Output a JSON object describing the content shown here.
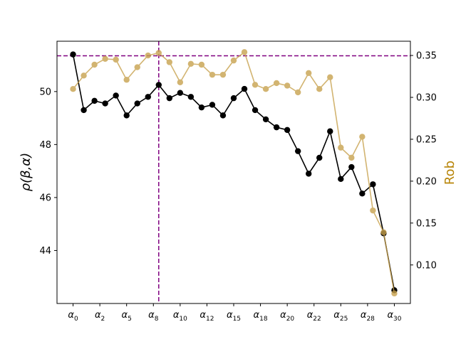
{
  "chart_data": {
    "type": "line",
    "x_tick_labels": [
      {
        "index": 0,
        "base": "α",
        "sub": "0"
      },
      {
        "index": 2,
        "base": "α",
        "sub": "2"
      },
      {
        "index": 4,
        "base": "α",
        "sub": "5"
      },
      {
        "index": 6,
        "base": "α",
        "sub": "8"
      },
      {
        "index": 8,
        "base": "α",
        "sub": "10"
      },
      {
        "index": 10,
        "base": "α",
        "sub": "12"
      },
      {
        "index": 12,
        "base": "α",
        "sub": "15"
      },
      {
        "index": 14,
        "base": "α",
        "sub": "18"
      },
      {
        "index": 16,
        "base": "α",
        "sub": "20"
      },
      {
        "index": 18,
        "base": "α",
        "sub": "22"
      },
      {
        "index": 20,
        "base": "α",
        "sub": "25"
      },
      {
        "index": 22,
        "base": "α",
        "sub": "28"
      },
      {
        "index": 24,
        "base": "α",
        "sub": "30"
      }
    ],
    "x_range": [
      -1.2,
      25.2
    ],
    "left_axis": {
      "label": "ρ(β,α)",
      "range": [
        42.0,
        51.9
      ],
      "ticks": [
        44,
        46,
        48,
        50
      ]
    },
    "right_axis": {
      "label": "Rob",
      "range": [
        0.054,
        0.367
      ],
      "ticks": [
        0.1,
        0.15,
        0.2,
        0.25,
        0.3,
        0.35
      ]
    },
    "series": [
      {
        "axis": "left",
        "color": "#000000",
        "x": [
          0,
          0.8,
          1.6,
          2.4,
          3.2,
          4.0,
          4.8,
          5.6,
          6.4,
          7.2,
          8.0,
          8.8,
          9.6,
          10.4,
          11.2,
          12.0,
          12.8,
          13.6,
          14.4,
          15.2,
          16.0,
          16.8,
          17.6,
          18.4,
          19.2,
          20.0,
          20.8,
          21.6,
          22.4,
          23.2,
          24.0
        ],
        "values": [
          51.4,
          49.3,
          49.65,
          49.55,
          49.85,
          49.1,
          49.55,
          49.8,
          50.25,
          49.75,
          49.95,
          49.8,
          49.4,
          49.5,
          49.1,
          49.75,
          50.1,
          49.3,
          48.95,
          48.65,
          48.55,
          47.75,
          46.9,
          47.5,
          48.5,
          46.7,
          47.15,
          46.15,
          46.5,
          44.65,
          42.5
        ]
      },
      {
        "axis": "right",
        "color": "#c8a24e",
        "x": [
          0,
          0.8,
          1.6,
          2.4,
          3.2,
          4.0,
          4.8,
          5.6,
          6.4,
          7.2,
          8.0,
          8.8,
          9.6,
          10.4,
          11.2,
          12.0,
          12.8,
          13.6,
          14.4,
          15.2,
          16.0,
          16.8,
          17.6,
          18.4,
          19.2,
          20.0,
          20.8,
          21.6,
          22.4,
          23.2,
          24.0
        ],
        "values": [
          0.31,
          0.326,
          0.339,
          0.346,
          0.345,
          0.321,
          0.336,
          0.35,
          0.353,
          0.342,
          0.318,
          0.34,
          0.339,
          0.327,
          0.327,
          0.344,
          0.354,
          0.315,
          0.31,
          0.317,
          0.314,
          0.306,
          0.329,
          0.31,
          0.324,
          0.24,
          0.228,
          0.253,
          0.165,
          0.139,
          0.066
        ]
      }
    ],
    "reference_lines": [
      {
        "orientation": "vertical",
        "x": 6.4,
        "color": "#800080",
        "style": "dashed"
      },
      {
        "orientation": "horizontal",
        "y": 51.35,
        "axis": "left",
        "color": "#800080",
        "style": "dashed"
      }
    ],
    "grid": false,
    "legend": "none"
  }
}
